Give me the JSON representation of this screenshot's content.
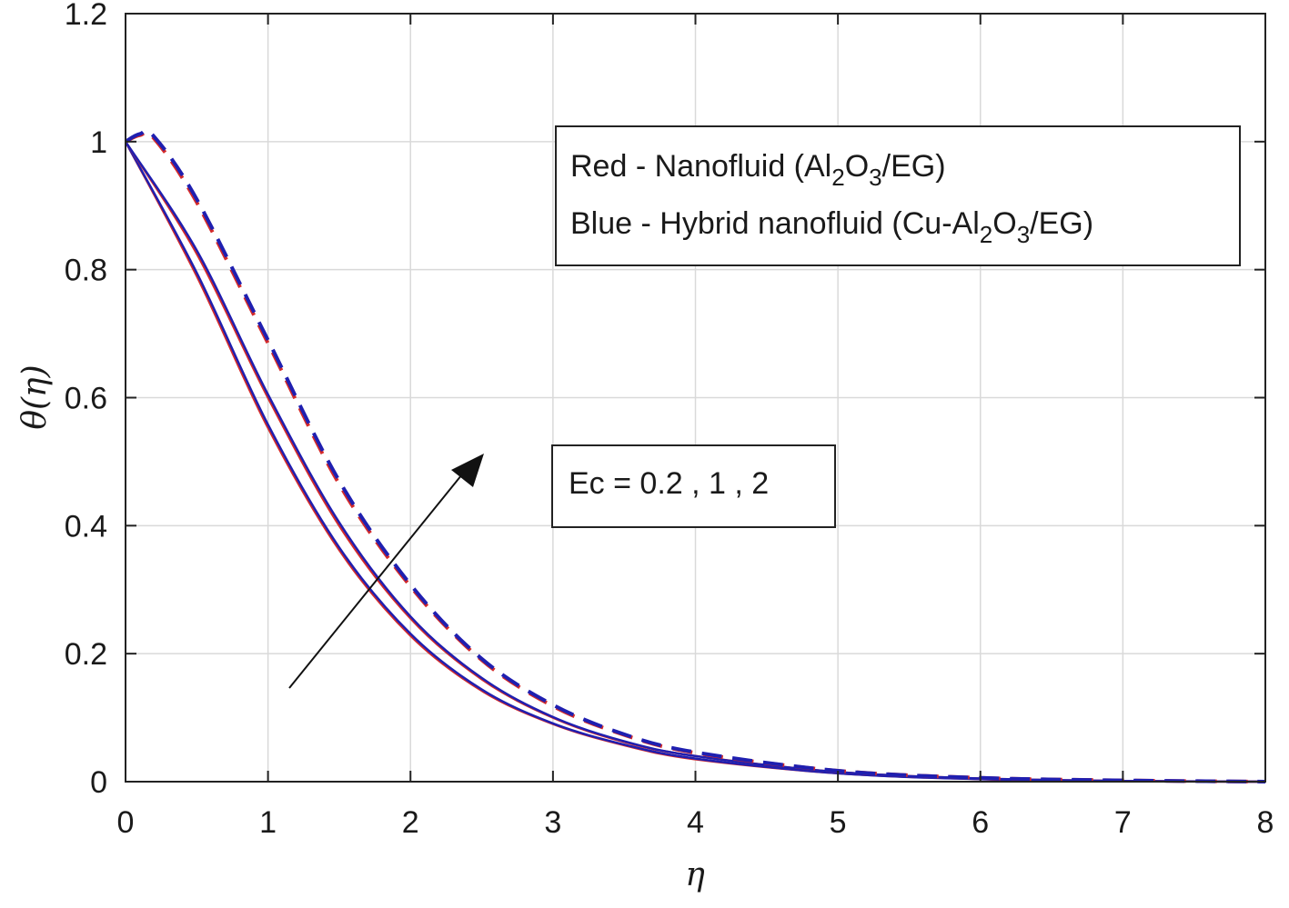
{
  "chart_data": {
    "type": "line",
    "xlabel": "η",
    "ylabel": "θ(η)",
    "xlim": [
      0,
      8
    ],
    "ylim": [
      0,
      1.2
    ],
    "xticks": [
      "0",
      "1",
      "2",
      "3",
      "4",
      "5",
      "6",
      "7",
      "8"
    ],
    "yticks": [
      "0",
      "0.2",
      "0.4",
      "0.6",
      "0.8",
      "1",
      "1.2"
    ],
    "grid": true,
    "legend": {
      "red_prefix": "Red - Nanofluid (Al",
      "red_sub1": "2",
      "red_mid": "O",
      "red_sub2": "3",
      "red_suffix": "/EG)",
      "blue_prefix": "Blue - Hybrid nanofluid (Cu-Al",
      "blue_sub1": "2",
      "blue_mid": "O",
      "blue_sub2": "3",
      "blue_suffix": "/EG)",
      "placement": "top-right"
    },
    "annotation": "Ec = 0.2 , 1 , 2",
    "colors": {
      "red": "#d42a2a",
      "blue": "#1f1fb0"
    },
    "series": [
      {
        "color": "red",
        "dash": "solid",
        "x": [
          0,
          0.5,
          1,
          1.5,
          2,
          2.5,
          3,
          3.5,
          4,
          5,
          6,
          7,
          8
        ],
        "y": [
          1.0,
          0.79,
          0.553,
          0.362,
          0.228,
          0.142,
          0.09,
          0.057,
          0.035,
          0.013,
          0.004,
          0.001,
          0
        ]
      },
      {
        "color": "blue",
        "dash": "solid",
        "x": [
          0,
          0.5,
          1,
          1.5,
          2,
          2.5,
          3,
          3.5,
          4,
          5,
          6,
          7,
          8
        ],
        "y": [
          1.0,
          0.795,
          0.558,
          0.366,
          0.231,
          0.144,
          0.091,
          0.058,
          0.036,
          0.013,
          0.004,
          0.001,
          0
        ]
      },
      {
        "color": "red",
        "dash": "solid",
        "x": [
          0,
          0.5,
          1,
          1.5,
          2,
          2.5,
          3,
          3.5,
          4,
          5,
          6,
          7,
          8
        ],
        "y": [
          1.0,
          0.825,
          0.6,
          0.4,
          0.255,
          0.16,
          0.1,
          0.062,
          0.04,
          0.015,
          0.005,
          0.001,
          0
        ]
      },
      {
        "color": "blue",
        "dash": "solid",
        "x": [
          0,
          0.5,
          1,
          1.5,
          2,
          2.5,
          3,
          3.5,
          4,
          5,
          6,
          7,
          8
        ],
        "y": [
          1.0,
          0.83,
          0.605,
          0.405,
          0.258,
          0.162,
          0.101,
          0.063,
          0.04,
          0.015,
          0.005,
          0.001,
          0
        ]
      },
      {
        "color": "red",
        "dash": "dashed",
        "x": [
          0,
          0.1,
          0.2,
          0.5,
          1,
          1.5,
          2,
          2.5,
          3,
          3.5,
          4,
          5,
          6,
          7,
          8
        ],
        "y": [
          1.0,
          1.01,
          1.005,
          0.905,
          0.685,
          0.465,
          0.305,
          0.19,
          0.118,
          0.073,
          0.045,
          0.017,
          0.006,
          0.002,
          0
        ]
      },
      {
        "color": "blue",
        "dash": "dashed",
        "x": [
          0,
          0.1,
          0.2,
          0.5,
          1,
          1.5,
          2,
          2.5,
          3,
          3.5,
          4,
          5,
          6,
          7,
          8
        ],
        "y": [
          1.0,
          1.012,
          1.008,
          0.91,
          0.69,
          0.47,
          0.308,
          0.192,
          0.12,
          0.074,
          0.046,
          0.017,
          0.006,
          0.002,
          0
        ]
      }
    ]
  }
}
